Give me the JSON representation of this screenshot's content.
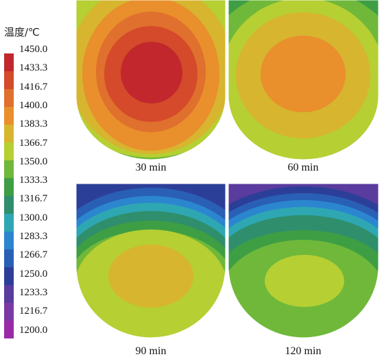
{
  "legend": {
    "title": "温度/℃",
    "ticks": [
      "1450.0",
      "1433.3",
      "1416.7",
      "1400.0",
      "1383.3",
      "1366.7",
      "1350.0",
      "1333.3",
      "1316.7",
      "1300.0",
      "1283.3",
      "1266.7",
      "1250.0",
      "1233.3",
      "1216.7",
      "1200.0"
    ],
    "colors": [
      "#c1272d",
      "#d44a2a",
      "#e0702d",
      "#e98f2c",
      "#d7b52f",
      "#b6cf33",
      "#6fb83a",
      "#3e9e44",
      "#2f8f6c",
      "#2ea7b3",
      "#2b86cf",
      "#2a5fb6",
      "#2c3f98",
      "#5a3b9e",
      "#7b3aa3",
      "#9a2aa8"
    ]
  },
  "panels": [
    {
      "label": "30 min"
    },
    {
      "label": "60 min"
    },
    {
      "label": "90 min"
    },
    {
      "label": "120 min"
    }
  ]
}
